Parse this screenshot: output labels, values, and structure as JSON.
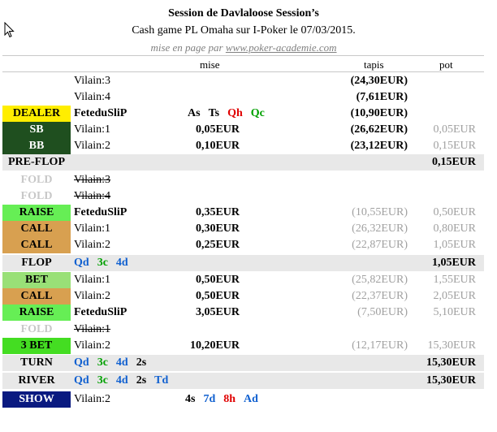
{
  "header": {
    "title": "Session de Davlaloose Session’s",
    "subtitle": "Cash game PL Omaha sur I-Poker le 07/03/2015.",
    "credit_prefix": "mise en page par",
    "credit_link": "www.poker-academie.com"
  },
  "columns": {
    "mise": "mise",
    "tapis": "tapis",
    "pot": "pot"
  },
  "rows": [
    {
      "type": "player",
      "name": "Vilain:3",
      "tapis": "(24,30EUR)"
    },
    {
      "type": "player",
      "name": "Vilain:4",
      "tapis": "(7,61EUR)"
    },
    {
      "type": "player",
      "action": "DEALER",
      "action_bg": "#ffee00",
      "action_fg": "#000000",
      "name": "FeteduSliP",
      "name_bold": true,
      "cards": [
        {
          "t": "As",
          "c": "#000000"
        },
        {
          "t": "Ts",
          "c": "#000000"
        },
        {
          "t": "Qh",
          "c": "#e00000"
        },
        {
          "t": "Qc",
          "c": "#00a000"
        }
      ],
      "tapis": "(10,90EUR)"
    },
    {
      "type": "player",
      "action": "SB",
      "action_bg": "#1f4f1f",
      "action_fg": "#ffffff",
      "name": "Vilain:1",
      "mise": "0,05EUR",
      "tapis": "(26,62EUR)",
      "pot": "0,05EUR"
    },
    {
      "type": "player",
      "action": "BB",
      "action_bg": "#1f4f1f",
      "action_fg": "#ffffff",
      "name": "Vilain:2",
      "mise": "0,10EUR",
      "tapis": "(23,12EUR)",
      "pot": "0,15EUR"
    },
    {
      "type": "street",
      "label": "PRE-FLOP",
      "pot": "0,15EUR"
    },
    {
      "type": "player",
      "action": "FOLD",
      "fold": true,
      "name": "Vilain:3"
    },
    {
      "type": "player",
      "action": "FOLD",
      "fold": true,
      "name": "Vilain:4"
    },
    {
      "type": "player",
      "action": "RAISE",
      "action_bg": "#66ee55",
      "action_fg": "#000000",
      "name": "FeteduSliP",
      "name_bold": true,
      "mise": "0,35EUR",
      "tapis": "(10,55EUR)",
      "pot": "0,50EUR"
    },
    {
      "type": "player",
      "action": "CALL",
      "action_bg": "#d8a050",
      "action_fg": "#000000",
      "name": "Vilain:1",
      "mise": "0,30EUR",
      "tapis": "(26,32EUR)",
      "pot": "0,80EUR"
    },
    {
      "type": "player",
      "action": "CALL",
      "action_bg": "#d8a050",
      "action_fg": "#000000",
      "name": "Vilain:2",
      "mise": "0,25EUR",
      "tapis": "(22,87EUR)",
      "pot": "1,05EUR"
    },
    {
      "type": "street",
      "label": "FLOP",
      "cards": [
        {
          "t": "Qd",
          "c": "#1060d0"
        },
        {
          "t": "3c",
          "c": "#00a000"
        },
        {
          "t": "4d",
          "c": "#1060d0"
        }
      ],
      "pot": "1,05EUR"
    },
    {
      "type": "player",
      "action": "BET",
      "action_bg": "#99e077",
      "action_fg": "#000000",
      "name": "Vilain:1",
      "mise": "0,50EUR",
      "tapis": "(25,82EUR)",
      "pot": "1,55EUR"
    },
    {
      "type": "player",
      "action": "CALL",
      "action_bg": "#d8a050",
      "action_fg": "#000000",
      "name": "Vilain:2",
      "mise": "0,50EUR",
      "tapis": "(22,37EUR)",
      "pot": "2,05EUR"
    },
    {
      "type": "player",
      "action": "RAISE",
      "action_bg": "#66ee55",
      "action_fg": "#000000",
      "name": "FeteduSliP",
      "name_bold": true,
      "mise": "3,05EUR",
      "tapis": "(7,50EUR)",
      "pot": "5,10EUR"
    },
    {
      "type": "player",
      "action": "FOLD",
      "fold": true,
      "name": "Vilain:1"
    },
    {
      "type": "player",
      "action": "3 BET",
      "action_bg": "#44dd22",
      "action_fg": "#000000",
      "name": "Vilain:2",
      "mise": "10,20EUR",
      "tapis": "(12,17EUR)",
      "pot": "15,30EUR"
    },
    {
      "type": "street",
      "label": "TURN",
      "cards": [
        {
          "t": "Qd",
          "c": "#1060d0"
        },
        {
          "t": "3c",
          "c": "#00a000"
        },
        {
          "t": "4d",
          "c": "#1060d0"
        },
        {
          "t": "2s",
          "c": "#000000"
        }
      ],
      "pot": "15,30EUR"
    },
    {
      "type": "street",
      "label": "RIVER",
      "cards": [
        {
          "t": "Qd",
          "c": "#1060d0"
        },
        {
          "t": "3c",
          "c": "#00a000"
        },
        {
          "t": "4d",
          "c": "#1060d0"
        },
        {
          "t": "2s",
          "c": "#000000"
        },
        {
          "t": "Td",
          "c": "#1060d0"
        }
      ],
      "pot": "15,30EUR"
    },
    {
      "type": "player",
      "action": "SHOW",
      "action_bg": "#0a1a80",
      "action_fg": "#ffffff",
      "name": "Vilain:2",
      "cards": [
        {
          "t": "4s",
          "c": "#000000"
        },
        {
          "t": "7d",
          "c": "#1060d0"
        },
        {
          "t": "8h",
          "c": "#e00000"
        },
        {
          "t": "Ad",
          "c": "#1060d0"
        }
      ]
    }
  ]
}
